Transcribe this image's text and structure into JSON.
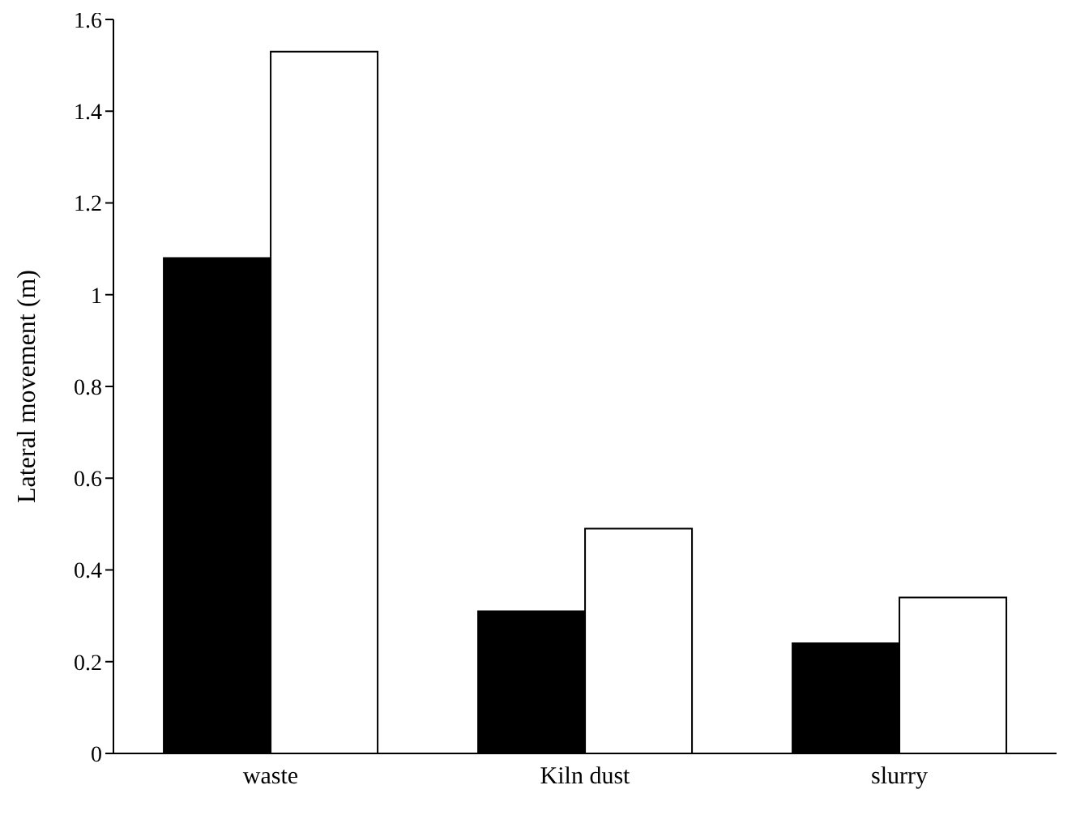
{
  "chart_data": {
    "type": "bar",
    "ylabel": "Lateral movement (m)",
    "categories": [
      "waste",
      "Kiln dust",
      "slurry"
    ],
    "series": [
      {
        "color": "#000000",
        "values": [
          1.08,
          0.31,
          0.24
        ]
      },
      {
        "color": "#ffffff",
        "values": [
          1.53,
          0.49,
          0.34
        ]
      }
    ],
    "ylim": [
      0,
      1.6
    ],
    "yticks": [
      0,
      0.2,
      0.4,
      0.6,
      0.8,
      1,
      1.2,
      1.4,
      1.6
    ],
    "grid": false,
    "legend": false
  }
}
